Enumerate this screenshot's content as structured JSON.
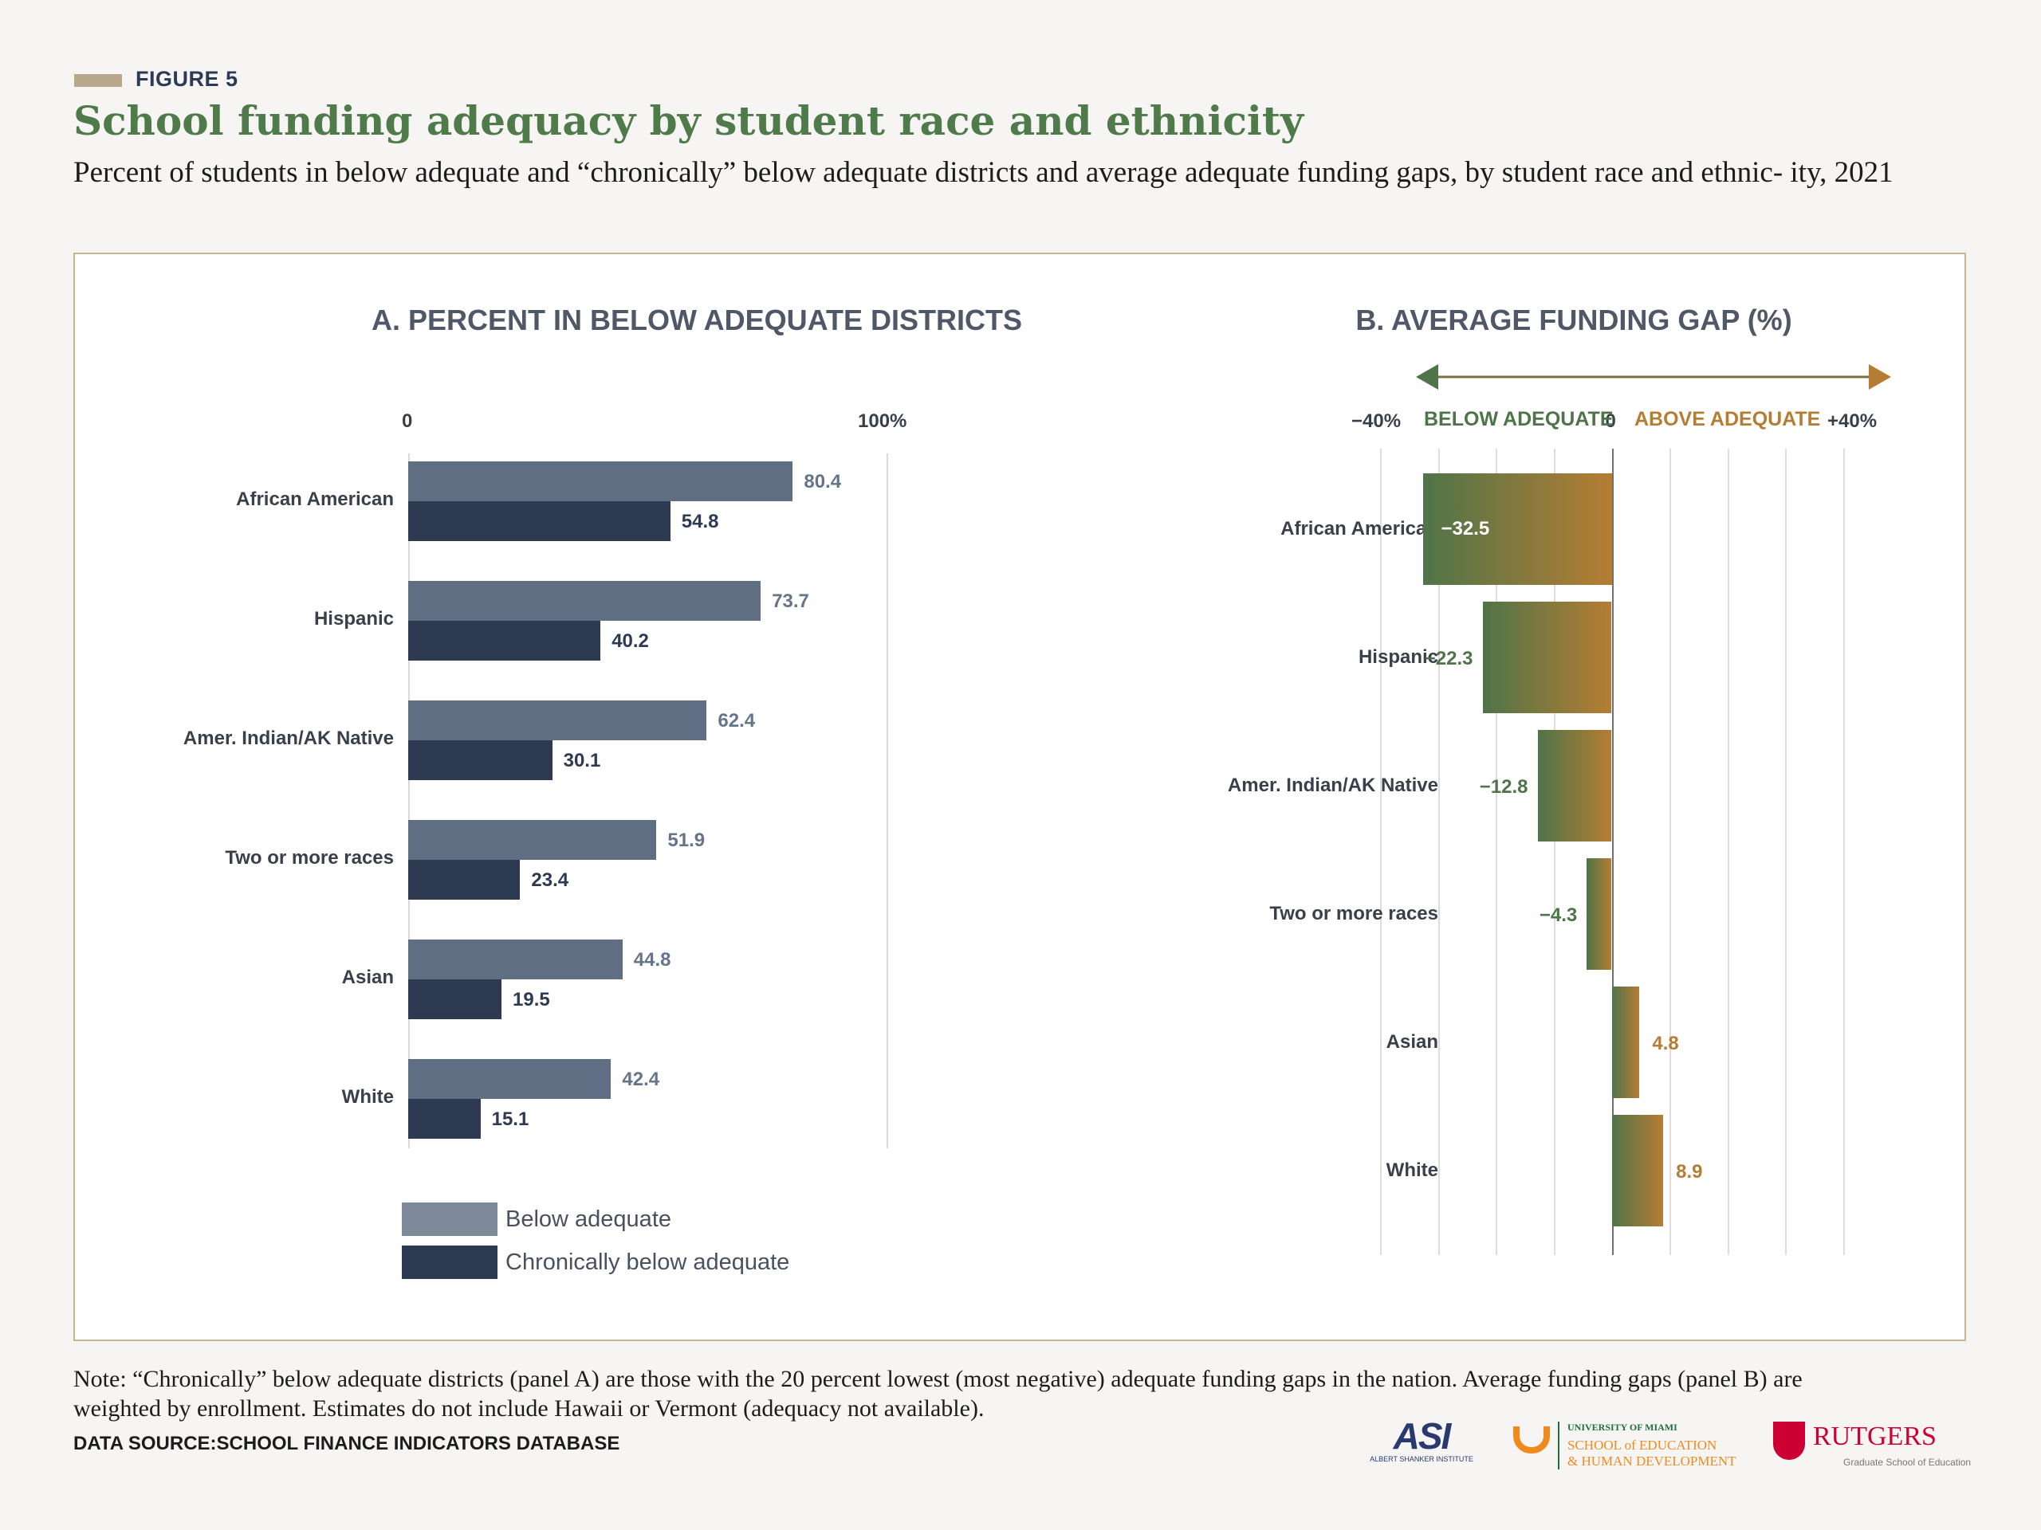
{
  "header": {
    "figure_label": "FIGURE 5",
    "title": "School funding adequacy by student race and ethnicity",
    "subtitle": "Percent of students in below adequate and “chronically” below adequate districts and average adequate funding gaps, by student race and ethnic- ity, 2021"
  },
  "colors": {
    "below": "#5f6e82",
    "chronic": "#2d3a52",
    "green": "#4f7449",
    "orange": "#b57d33"
  },
  "chart_data": [
    {
      "type": "bar",
      "orientation": "horizontal",
      "title": "A. PERCENT IN BELOW ADEQUATE DISTRICTS",
      "xlim": [
        0,
        100
      ],
      "tick_labels": [
        "0",
        "100%"
      ],
      "categories": [
        "African American",
        "Hispanic",
        "Amer. Indian/AK Native",
        "Two or more races",
        "Asian",
        "White"
      ],
      "series": [
        {
          "name": "Below adequate",
          "values": [
            80.4,
            73.7,
            62.4,
            51.9,
            44.8,
            42.4
          ],
          "labels": [
            "80.4",
            "73.7",
            "62.4",
            "51.9",
            "44.8",
            "42.4"
          ]
        },
        {
          "name": "Chronically below adequate",
          "values": [
            54.8,
            40.2,
            30.1,
            23.4,
            19.5,
            15.1
          ],
          "labels": [
            "54.8",
            "40.2",
            "30.1",
            "23.4",
            "19.5",
            "15.1"
          ]
        }
      ],
      "legend": [
        "Below adequate",
        "Chronically below adequate"
      ],
      "legend_position": "bottom-left"
    },
    {
      "type": "bar",
      "orientation": "horizontal",
      "title": "B. AVERAGE FUNDING GAP (%)",
      "xlim": [
        -40,
        40
      ],
      "tick_labels": [
        "−40%",
        "0",
        "+40%"
      ],
      "direction_labels": {
        "left": "BELOW ADEQUATE",
        "right": "ABOVE ADEQUATE"
      },
      "categories": [
        "African American",
        "Hispanic",
        "Amer. Indian/AK Native",
        "Two or more races",
        "Asian",
        "White"
      ],
      "values": [
        -32.5,
        -22.3,
        -12.8,
        -4.3,
        4.8,
        8.9
      ],
      "labels": [
        "−32.5",
        "−22.3",
        "−12.8",
        "−4.3",
        "4.8",
        "8.9"
      ]
    }
  ],
  "footer": {
    "note": "Note: “Chronically” below adequate districts (panel A) are those with the 20 percent lowest (most negative) adequate funding gaps in the nation. Average funding gaps (panel B) are weighted by enrollment. Estimates do not include Hawaii or Vermont (adequacy not available).",
    "source": "DATA SOURCE:SCHOOL FINANCE INDICATORS DATABASE",
    "logos": {
      "asi_mark": "ASI",
      "asi_name": "ALBERT SHANKER INSTITUTE",
      "miami_line1": "UNIVERSITY OF MIAMI",
      "miami_line2": "SCHOOL of EDUCATION",
      "miami_line3": "& HUMAN DEVELOPMENT",
      "rutgers_name": "RUTGERS",
      "rutgers_sub": "Graduate School of Education"
    }
  }
}
